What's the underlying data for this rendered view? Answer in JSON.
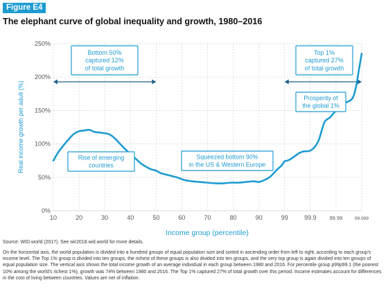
{
  "figure_label": "Figure E4",
  "title": "The elephant curve of global inequality and growth, 1980–2016",
  "source": "Source: WID.world (2017). See wir2018.wid.world for more details.",
  "note": "On the horizontal axis, the world population is divided into a hundred groups of equal population size and sorted in ascending order from left to right, according to each group's income level. The Top 1% group is divided into ten groups, the richest of these groups is also divided into ten groups, and the very top group is again divided into ten groups of equal population size. The vertical axis shows the total income growth of an average individual in each group between 1980 and 2016. For percentile group p99p99.1 (the poorest 10% among the world's richest 1%), growth was 74% between 1980 and 2016. The Top 1% captured 27% of total growth over this period. Income estimates account for differences in the cost of living between countries. Values are net of inflation.",
  "colors": {
    "accent": "#1d9bd1",
    "grid": "#cfcfcf",
    "axis_text": "#555555"
  },
  "chart_data": {
    "type": "line",
    "xlabel": "Income group (percentile)",
    "ylabel": "Real income growth per adult (%)",
    "ylim": [
      0,
      250
    ],
    "grid": true,
    "y_ticks": [
      "0%",
      "50%",
      "100%",
      "150%",
      "200%",
      "250%"
    ],
    "x_ticks": [
      "10",
      "20",
      "30",
      "40",
      "50",
      "60",
      "70",
      "80",
      "90",
      "99",
      "99.9",
      "99.99",
      "99.999"
    ],
    "series": [
      {
        "x": [
          "10",
          "12",
          "14",
          "16",
          "18",
          "20",
          "22",
          "24",
          "26",
          "28",
          "30",
          "32",
          "34",
          "36",
          "38",
          "40",
          "42",
          "44",
          "46",
          "48",
          "50",
          "52",
          "55",
          "58",
          "61",
          "64",
          "67",
          "70",
          "73",
          "76",
          "79",
          "82",
          "85",
          "88",
          "90",
          "92",
          "94",
          "96",
          "98",
          "99",
          "99.1",
          "99.2",
          "99.3",
          "99.4",
          "99.5",
          "99.6",
          "99.7",
          "99.8",
          "99.9",
          "99.91",
          "99.92",
          "99.93",
          "99.94",
          "99.95",
          "99.96",
          "99.97",
          "99.98",
          "99.99",
          "99.991",
          "99.992",
          "99.993",
          "99.994",
          "99.995",
          "99.996",
          "99.997",
          "99.998",
          "99.999"
        ],
        "values": [
          75,
          88,
          98,
          107,
          115,
          119,
          120,
          121,
          118,
          117,
          116,
          114,
          108,
          100,
          92,
          85,
          78,
          71,
          66,
          62,
          60,
          56,
          53,
          50,
          46,
          44,
          43,
          42,
          41,
          41,
          42,
          42,
          43,
          44,
          43,
          46,
          51,
          60,
          68,
          74,
          75,
          77,
          80,
          83,
          86,
          88,
          89,
          89,
          90,
          93,
          98,
          106,
          120,
          133,
          137,
          140,
          145,
          150,
          155,
          160,
          161,
          163,
          165,
          170,
          185,
          210,
          235
        ]
      }
    ],
    "annotations": [
      {
        "id": "bottom50",
        "text": [
          "Bottom 50%",
          "captured 12%",
          "of total growth"
        ]
      },
      {
        "id": "top1",
        "text": [
          "Top 1%",
          "captured 27%",
          "of total growth"
        ]
      },
      {
        "id": "emerging",
        "text": [
          "Rise of emerging",
          "countries"
        ]
      },
      {
        "id": "squeezed",
        "text": [
          "Squeezed bottom 90%",
          "in the US & Western Europe"
        ]
      },
      {
        "id": "prosperity",
        "text": [
          "Prosperity of",
          "the global 1%"
        ]
      }
    ]
  }
}
